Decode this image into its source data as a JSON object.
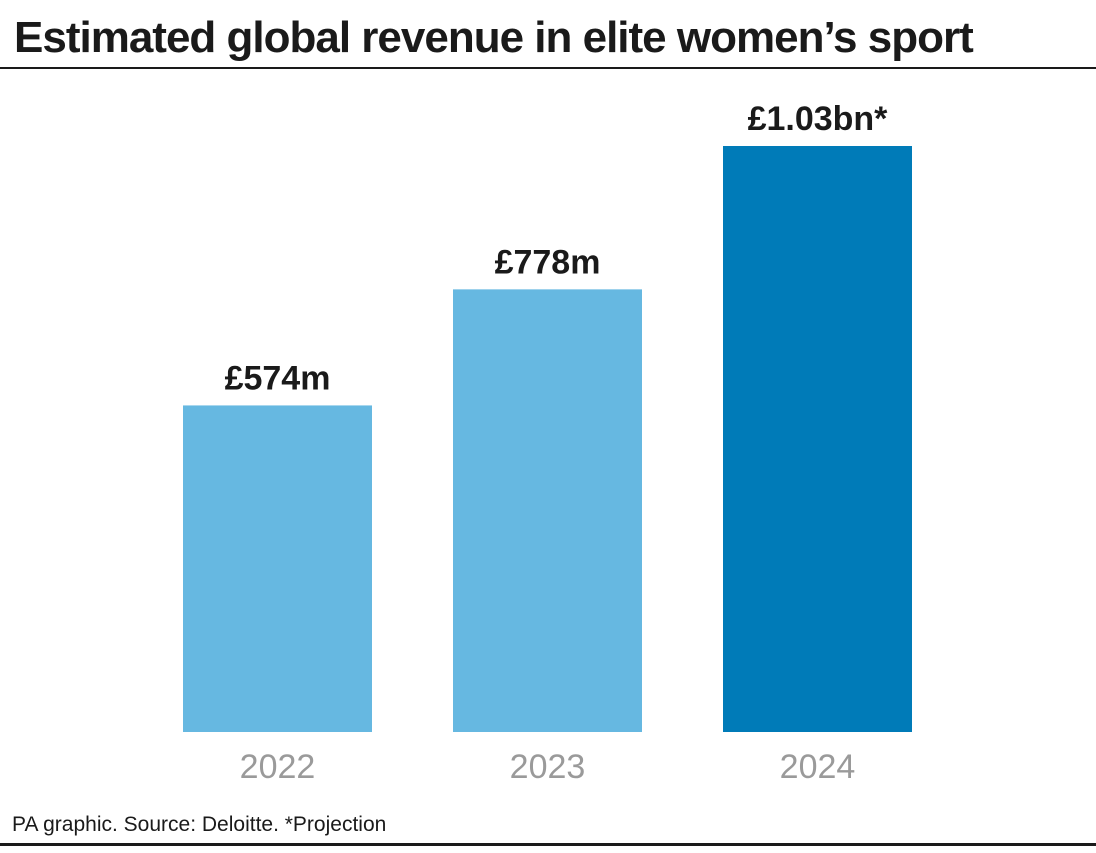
{
  "title": "Estimated global revenue in elite women’s sport",
  "footer": "PA graphic. Source: Deloitte. *Projection",
  "chart_data": {
    "type": "bar",
    "categories": [
      "2022",
      "2023",
      "2024"
    ],
    "values": [
      574,
      778,
      1030
    ],
    "value_labels": [
      "£574m",
      "£778m",
      "£1.03bn*"
    ],
    "unit": "£m",
    "colors": [
      "#66b8e1",
      "#66b8e1",
      "#007bb8"
    ],
    "ylim": [
      0,
      1200
    ],
    "grid": false,
    "legend": "none"
  }
}
